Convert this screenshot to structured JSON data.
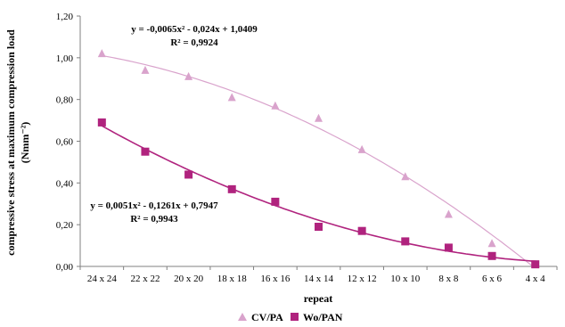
{
  "chart_data": {
    "type": "scatter",
    "xlabel": "repeat",
    "ylabel": "compressive stress at maximum compression load",
    "ylabel_unit": "(Nmm⁻²)",
    "categories": [
      "24 x 24",
      "22 x 22",
      "20 x 20",
      "18 x 18",
      "16 x 16",
      "14 x 14",
      "12 x 12",
      "10 x 10",
      "8 x 8",
      "6 x 6",
      "4 x 4"
    ],
    "ylim": [
      0,
      1.2
    ],
    "yticks": [
      "0,00",
      "0,20",
      "0,40",
      "0,60",
      "0,80",
      "1,00",
      "1,20"
    ],
    "grid": false,
    "legend_position": "bottom",
    "series": [
      {
        "name": "CV/PA",
        "marker": "triangle",
        "color": "#D9A3CC",
        "values": [
          1.02,
          0.94,
          0.91,
          0.81,
          0.77,
          0.71,
          0.56,
          0.43,
          0.25,
          0.11,
          0.01
        ],
        "trendline": {
          "type": "polynomial-2",
          "coefficients": [
            -0.0065,
            -0.024,
            1.0409
          ],
          "equation": "y = -0,0065x² - 0,024x + 1,0409",
          "r2": "R² = 0,9924"
        }
      },
      {
        "name": "Wo/PAN",
        "marker": "square",
        "color": "#B0237E",
        "values": [
          0.69,
          0.55,
          0.44,
          0.37,
          0.31,
          0.19,
          0.17,
          0.12,
          0.09,
          0.05,
          0.01
        ],
        "trendline": {
          "type": "polynomial-2",
          "coefficients": [
            0.0051,
            -0.1261,
            0.7947
          ],
          "equation": "y = 0,0051x² - 0,1261x + 0,7947",
          "r2": "R² = 0,9943"
        }
      }
    ]
  }
}
